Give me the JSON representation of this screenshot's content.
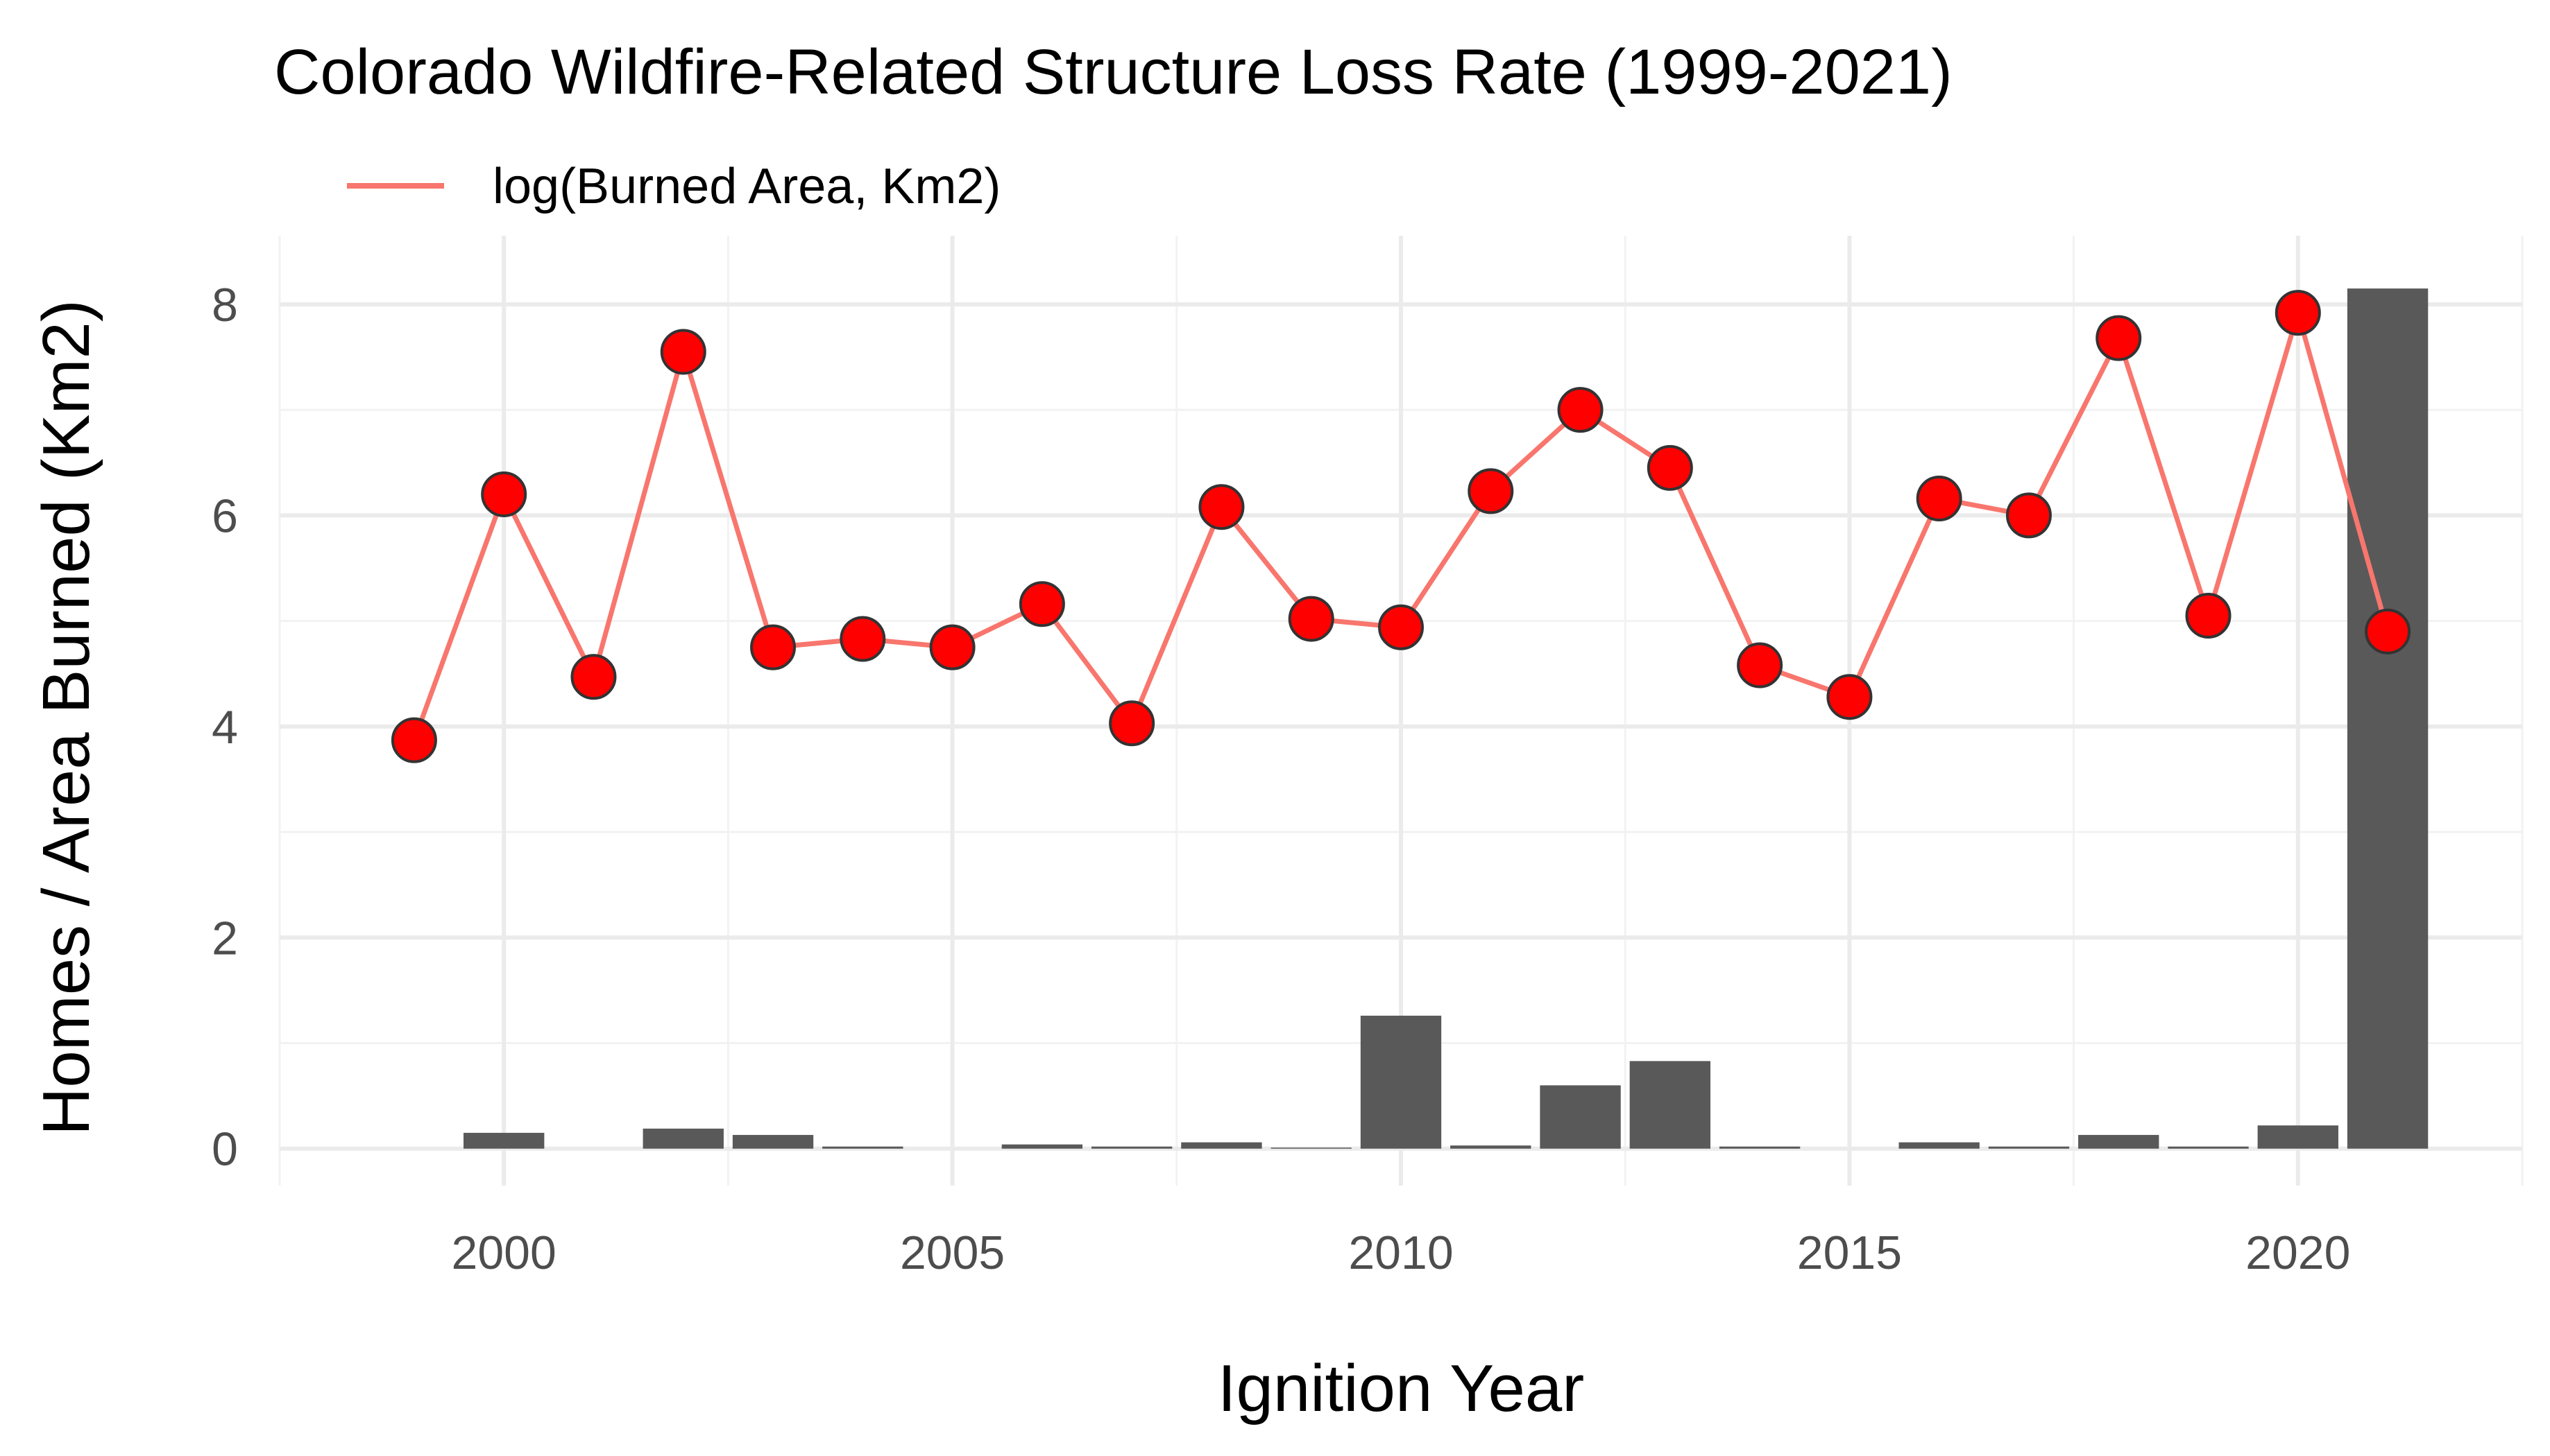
{
  "chart_data": {
    "type": "bar+line",
    "title": "Colorado Wildfire-Related Structure Loss Rate (1999-2021)",
    "xlabel": "Ignition Year",
    "ylabel": "Homes / Area Burned (Km2)",
    "xlim": [
      1997.5,
      2022.5
    ],
    "ylim": [
      -0.35,
      8.65
    ],
    "xticks": [
      2000,
      2005,
      2010,
      2015,
      2020
    ],
    "yticks": [
      0,
      2,
      4,
      6,
      8
    ],
    "grid": true,
    "legend": {
      "position": "top-left",
      "entries": [
        {
          "label": "log(Burned Area, Km2)",
          "color": "#f8766d"
        }
      ]
    },
    "bars": {
      "color": "#595959",
      "x": [
        1999,
        2000,
        2001,
        2002,
        2003,
        2004,
        2005,
        2006,
        2007,
        2008,
        2009,
        2010,
        2011,
        2012,
        2013,
        2014,
        2015,
        2016,
        2017,
        2018,
        2019,
        2020,
        2021
      ],
      "values": [
        0,
        0.15,
        0,
        0.19,
        0.13,
        0.02,
        0,
        0.04,
        0.02,
        0.06,
        0.01,
        1.26,
        0.03,
        0.6,
        0.83,
        0.02,
        0,
        0.06,
        0.02,
        0.13,
        0.02,
        0.22,
        8.15
      ]
    },
    "series": [
      {
        "name": "log(Burned Area, Km2)",
        "line_color": "#f8766d",
        "point_color": "#ff0000",
        "x": [
          1999,
          2000,
          2001,
          2002,
          2003,
          2004,
          2005,
          2006,
          2007,
          2008,
          2009,
          2010,
          2011,
          2012,
          2013,
          2014,
          2015,
          2016,
          2017,
          2018,
          2019,
          2020,
          2021
        ],
        "values": [
          3.87,
          6.2,
          4.47,
          7.55,
          4.75,
          4.83,
          4.75,
          5.16,
          4.03,
          6.08,
          5.02,
          4.94,
          6.23,
          7.0,
          6.45,
          4.58,
          4.28,
          6.16,
          6.0,
          7.68,
          5.05,
          7.92,
          4.9
        ]
      }
    ]
  }
}
